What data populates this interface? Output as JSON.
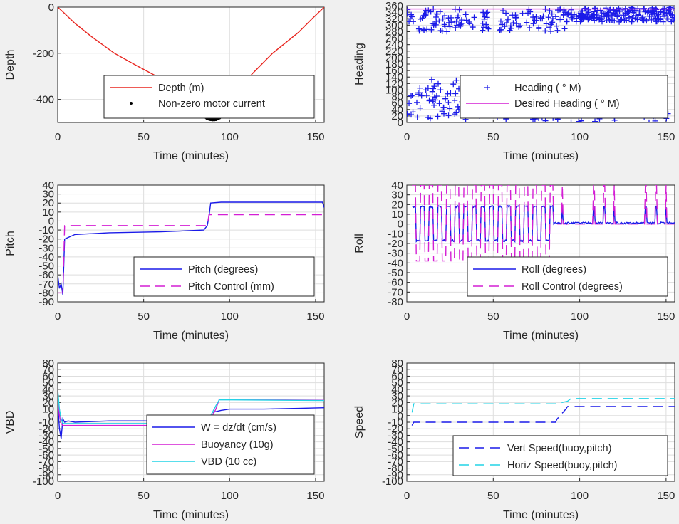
{
  "chart_data": [
    {
      "id": "depth",
      "type": "line",
      "xlabel": "Time (minutes)",
      "ylabel": "Depth",
      "xlim": [
        0,
        155
      ],
      "ylim": [
        -500,
        0
      ],
      "xticks": [
        0,
        50,
        100,
        150
      ],
      "yticks": [
        0,
        -200,
        -400
      ],
      "grid": true,
      "legend_position": "bottom-right",
      "series": [
        {
          "name": "Depth (m)",
          "color": "#e8251f",
          "style": "solid",
          "x": [
            0,
            3,
            10,
            20,
            33,
            45,
            60,
            72,
            82,
            88,
            92,
            100,
            113,
            125,
            140,
            148,
            155
          ],
          "y": [
            0,
            -20,
            -70,
            -130,
            -200,
            -250,
            -310,
            -370,
            -430,
            -470,
            -480,
            -420,
            -290,
            -200,
            -110,
            -50,
            0
          ]
        },
        {
          "name": "Non-zero motor current",
          "color": "#000000",
          "style": "dot",
          "x": [
            86,
            87,
            88,
            89,
            90,
            91,
            92,
            93,
            94
          ],
          "y": [
            -474,
            -479,
            -482,
            -484,
            -485,
            -485,
            -484,
            -481,
            -477
          ]
        }
      ]
    },
    {
      "id": "heading",
      "type": "scatter",
      "xlabel": "Time (minutes)",
      "ylabel": "Heading",
      "xlim": [
        0,
        155
      ],
      "ylim": [
        0,
        360
      ],
      "xticks": [
        0,
        50,
        100,
        150
      ],
      "yticks": [
        0,
        20,
        40,
        60,
        80,
        100,
        120,
        140,
        160,
        180,
        200,
        220,
        240,
        260,
        280,
        300,
        320,
        340,
        360
      ],
      "grid": true,
      "legend_position": "bottom-right",
      "series": [
        {
          "name": "Heading (  ° M)",
          "color": "#1a1ae8",
          "style": "plus"
        },
        {
          "name": "Desired Heading (    ° M)",
          "color": "#d41fd4",
          "style": "solid",
          "x": [
            0,
            92,
            155
          ],
          "y": [
            350,
            350,
            350
          ]
        }
      ]
    },
    {
      "id": "pitch",
      "type": "line",
      "xlabel": "Time (minutes)",
      "ylabel": "Pitch",
      "xlim": [
        0,
        155
      ],
      "ylim": [
        -90,
        40
      ],
      "xticks": [
        0,
        50,
        100,
        150
      ],
      "yticks": [
        40,
        30,
        20,
        10,
        0,
        -10,
        -20,
        -30,
        -40,
        -50,
        -60,
        -70,
        -80,
        -90
      ],
      "grid": true,
      "legend_position": "bottom-right",
      "series": [
        {
          "name": "Pitch (degrees)",
          "color": "#1a1ae8",
          "style": "solid",
          "x": [
            0,
            1,
            2,
            3,
            4,
            10,
            30,
            60,
            85,
            87,
            88,
            89,
            95,
            120,
            154,
            155
          ],
          "y": [
            -60,
            -75,
            -70,
            -82,
            -20,
            -15,
            -13,
            -12,
            -10,
            -5,
            5,
            20,
            21,
            21,
            21,
            15
          ]
        },
        {
          "name": "Pitch Control (mm)",
          "color": "#d41fd4",
          "style": "dash",
          "x": [
            0,
            3,
            4,
            87,
            88,
            155
          ],
          "y": [
            -80,
            -80,
            -5,
            -5,
            7,
            7
          ]
        }
      ]
    },
    {
      "id": "roll",
      "type": "line",
      "xlabel": "Time (minutes)",
      "ylabel": "Roll",
      "xlim": [
        0,
        155
      ],
      "ylim": [
        -80,
        40
      ],
      "xticks": [
        0,
        50,
        100,
        150
      ],
      "yticks": [
        40,
        30,
        20,
        10,
        0,
        -10,
        -20,
        -30,
        -40,
        -50,
        -60,
        -70,
        -80
      ],
      "grid": true,
      "legend_position": "bottom-right",
      "series": [
        {
          "name": "Roll (degrees)",
          "color": "#1a1ae8",
          "style": "solid"
        },
        {
          "name": "Roll Control (degrees)",
          "color": "#d41fd4",
          "style": "dash"
        }
      ]
    },
    {
      "id": "vbd",
      "type": "line",
      "xlabel": "Time (minutes)",
      "ylabel": "VBD",
      "xlim": [
        0,
        155
      ],
      "ylim": [
        -100,
        80
      ],
      "xticks": [
        0,
        50,
        100,
        150
      ],
      "yticks": [
        80,
        70,
        60,
        50,
        40,
        30,
        20,
        10,
        0,
        -10,
        -20,
        -30,
        -40,
        -50,
        -60,
        -70,
        -80,
        -90,
        -100
      ],
      "grid": true,
      "legend_position": "bottom-right",
      "series": [
        {
          "name": "W = dz/dt (cm/s)",
          "color": "#1a1ae8",
          "style": "solid",
          "x": [
            0,
            1,
            2,
            3,
            4,
            6,
            10,
            30,
            50,
            70,
            85,
            88,
            90,
            95,
            100,
            120,
            140,
            155
          ],
          "y": [
            20,
            -20,
            -35,
            -5,
            -10,
            -8,
            -10,
            -8,
            -8,
            -9,
            -9,
            -5,
            5,
            8,
            10,
            10,
            11,
            12
          ]
        },
        {
          "name": "Buoyancy (10g)",
          "color": "#d41fd4",
          "style": "solid",
          "x": [
            0,
            1,
            2,
            3,
            10,
            50,
            85,
            88,
            92,
            94,
            155
          ],
          "y": [
            30,
            0,
            -12,
            -15,
            -15,
            -15,
            -15,
            -10,
            10,
            25,
            25
          ]
        },
        {
          "name": "VBD (10 cc)",
          "color": "#22d3e6",
          "style": "solid",
          "x": [
            0,
            1,
            2,
            3,
            10,
            50,
            85,
            88,
            92,
            94,
            155
          ],
          "y": [
            40,
            10,
            -5,
            -12,
            -12,
            -12,
            -12,
            -5,
            15,
            24,
            23
          ]
        }
      ]
    },
    {
      "id": "speed",
      "type": "line",
      "xlabel": "Time (minutes)",
      "ylabel": "Speed",
      "xlim": [
        0,
        155
      ],
      "ylim": [
        -100,
        80
      ],
      "xticks": [
        0,
        50,
        100,
        150
      ],
      "yticks": [
        80,
        70,
        60,
        50,
        40,
        30,
        20,
        10,
        0,
        -10,
        -20,
        -30,
        -40,
        -50,
        -60,
        -70,
        -80,
        -90,
        -100
      ],
      "grid": true,
      "legend_position": "bottom-right",
      "series": [
        {
          "name": "Vert Speed(buoy,pitch)",
          "color": "#1a1ae8",
          "style": "dash",
          "x": [
            3,
            4,
            86,
            87,
            92,
            93,
            155
          ],
          "y": [
            -15,
            -10,
            -10,
            -5,
            10,
            14,
            14
          ]
        },
        {
          "name": "Horiz Speed(buoy,pitch)",
          "color": "#22d3e6",
          "style": "dash",
          "x": [
            3,
            4,
            86,
            88,
            93,
            95,
            155
          ],
          "y": [
            5,
            18,
            18,
            19,
            22,
            26,
            26
          ]
        }
      ]
    }
  ]
}
